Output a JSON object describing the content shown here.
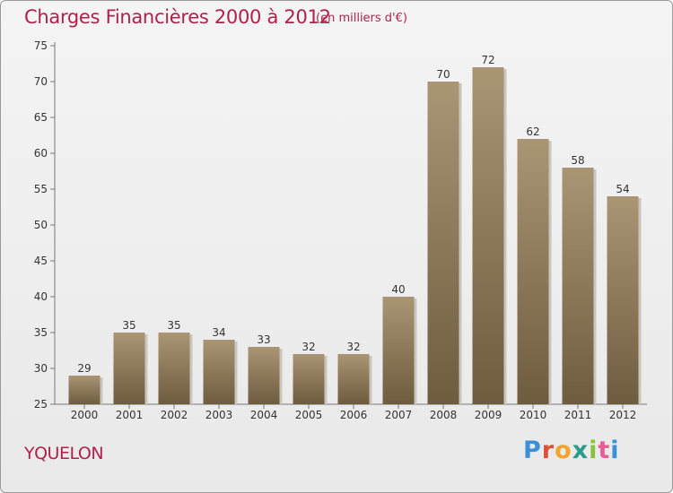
{
  "chart_data": {
    "type": "bar",
    "title": "Charges Financières 2000 à 2012",
    "unit_note": "(en milliers d'€)",
    "categories": [
      "2000",
      "2001",
      "2002",
      "2003",
      "2004",
      "2005",
      "2006",
      "2007",
      "2008",
      "2009",
      "2010",
      "2011",
      "2012"
    ],
    "values": [
      29,
      35,
      35,
      34,
      33,
      32,
      32,
      40,
      70,
      72,
      62,
      58,
      54
    ],
    "ylim": [
      25,
      75
    ],
    "yticks": [
      25,
      30,
      35,
      40,
      45,
      50,
      55,
      60,
      65,
      70,
      75
    ],
    "grid": false,
    "bar_color": "#8a7658"
  },
  "footer": {
    "commune": "YQUELON",
    "logo_letters": [
      "P",
      "r",
      "o",
      "x",
      "i",
      "t",
      "i"
    ]
  }
}
